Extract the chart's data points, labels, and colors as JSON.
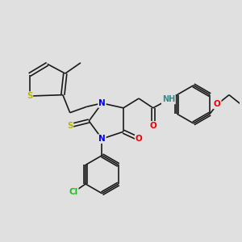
{
  "bg_color": "#e0e0e0",
  "bond_color": "#1a1a1a",
  "bond_width": 1.2,
  "atom_colors": {
    "S": "#b8b800",
    "N": "#0000ee",
    "O": "#ee0000",
    "Cl": "#22bb22",
    "H": "#3a8888",
    "C": "#1a1a1a"
  },
  "font_size": 7.5
}
